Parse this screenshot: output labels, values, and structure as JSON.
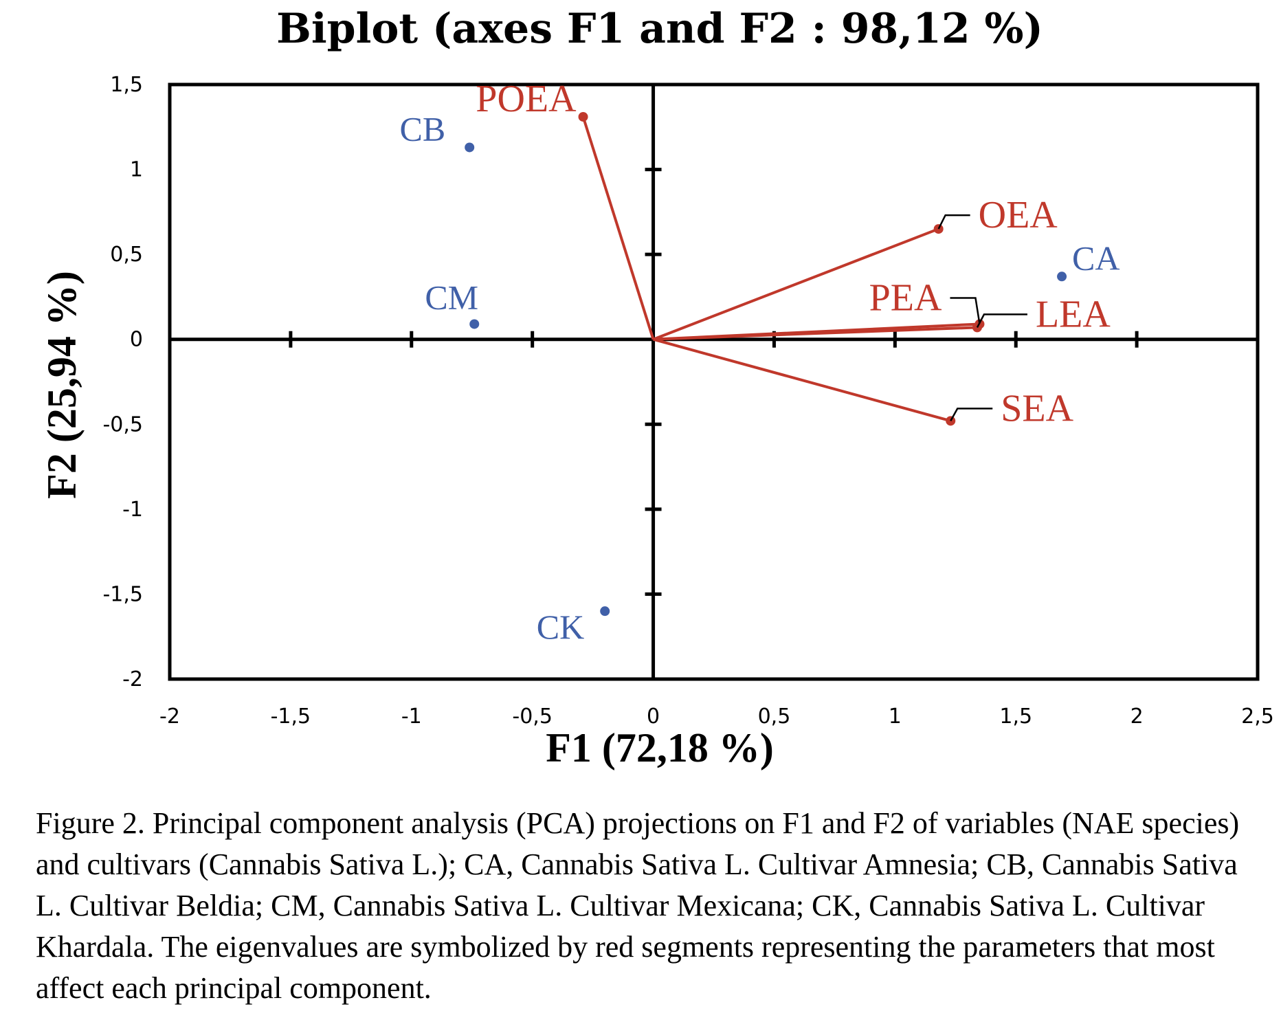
{
  "chart_data": {
    "type": "scatter",
    "title": "Biplot (axes F1 and F2 : 98,12 %)",
    "xlabel": "F1 (72,18 %)",
    "ylabel": "F2 (25,94 %)",
    "xlim": [
      -2,
      2.5
    ],
    "ylim": [
      -2,
      1.5
    ],
    "x_ticks": [
      -2,
      -1.5,
      -1,
      -0.5,
      0,
      0.5,
      1,
      1.5,
      2,
      2.5
    ],
    "y_ticks": [
      -2,
      -1.5,
      -1,
      -0.5,
      0,
      0.5,
      1,
      1.5
    ],
    "x_tick_labels": [
      "-2",
      "-1,5",
      "-1",
      "-0,5",
      "0",
      "0,5",
      "1",
      "1,5",
      "2",
      "2,5"
    ],
    "y_tick_labels": [
      "-2",
      "-1,5",
      "-1",
      "-0,5",
      "0",
      "0,5",
      "1",
      "1,5"
    ],
    "observations": [
      {
        "label": "CA",
        "x": 1.69,
        "y": 0.37
      },
      {
        "label": "CB",
        "x": -0.76,
        "y": 1.13
      },
      {
        "label": "CM",
        "x": -0.74,
        "y": 0.09
      },
      {
        "label": "CK",
        "x": -0.2,
        "y": -1.6
      }
    ],
    "variables": [
      {
        "label": "POEA",
        "x": -0.29,
        "y": 1.31
      },
      {
        "label": "OEA",
        "x": 1.18,
        "y": 0.65
      },
      {
        "label": "PEA",
        "x": 1.35,
        "y": 0.09
      },
      {
        "label": "LEA",
        "x": 1.34,
        "y": 0.07
      },
      {
        "label": "SEA",
        "x": 1.23,
        "y": -0.48
      }
    ],
    "colors": {
      "observations": "#4060a8",
      "variables": "#c0382b",
      "axes": "#000000"
    },
    "grid": false
  },
  "caption": "Figure 2. Principal component analysis (PCA) projections on F1 and F2 of variables (NAE species) and cultivars (Cannabis Sativa L.); CA, Cannabis Sativa L. Cultivar Amnesia; CB, Cannabis Sativa L. Cultivar Beldia; CM, Cannabis Sativa L. Cultivar Mexicana; CK, Cannabis Sativa L. Cultivar Khardala. The eigenvalues are symbolized by red segments representing the parameters that most affect each principal component."
}
